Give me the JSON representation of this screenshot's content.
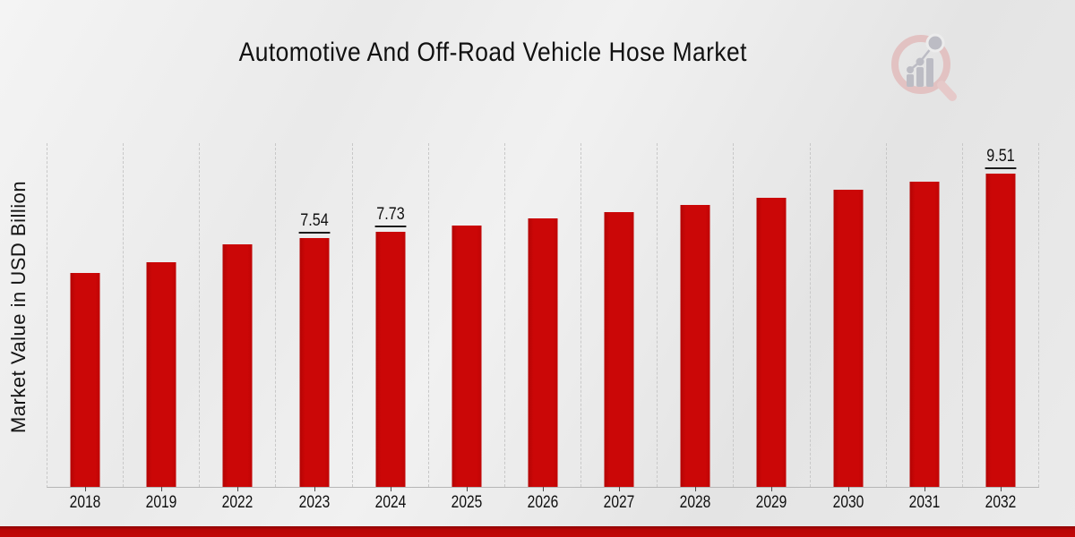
{
  "chart": {
    "title": "Automotive And Off-Road Vehicle Hose Market",
    "ylabel": "Market Value in USD Billion"
  },
  "chart_data": {
    "type": "bar",
    "title": "Automotive And Off-Road Vehicle Hose Market",
    "xlabel": "",
    "ylabel": "Market Value in USD Billion",
    "categories": [
      "2018",
      "2019",
      "2022",
      "2023",
      "2024",
      "2025",
      "2026",
      "2027",
      "2028",
      "2029",
      "2030",
      "2031",
      "2032"
    ],
    "values": [
      6.5,
      6.81,
      7.35,
      7.54,
      7.73,
      7.93,
      8.13,
      8.34,
      8.56,
      8.78,
      9.01,
      9.26,
      9.51
    ],
    "data_labels": [
      null,
      null,
      null,
      "7.54",
      "7.73",
      null,
      null,
      null,
      null,
      null,
      null,
      null,
      "9.51"
    ],
    "ylim": [
      0,
      10.45
    ],
    "grid": "vertical-dashed",
    "legend_position": "none",
    "bar_color": "#c90606",
    "accent_color": "#c20707"
  },
  "logo": {
    "name": "magnifier-bar-chart-logo",
    "ring_color": "#e2c2c2",
    "bars_color": "#bcbcc4",
    "handle_color": "#e6c9c9"
  }
}
